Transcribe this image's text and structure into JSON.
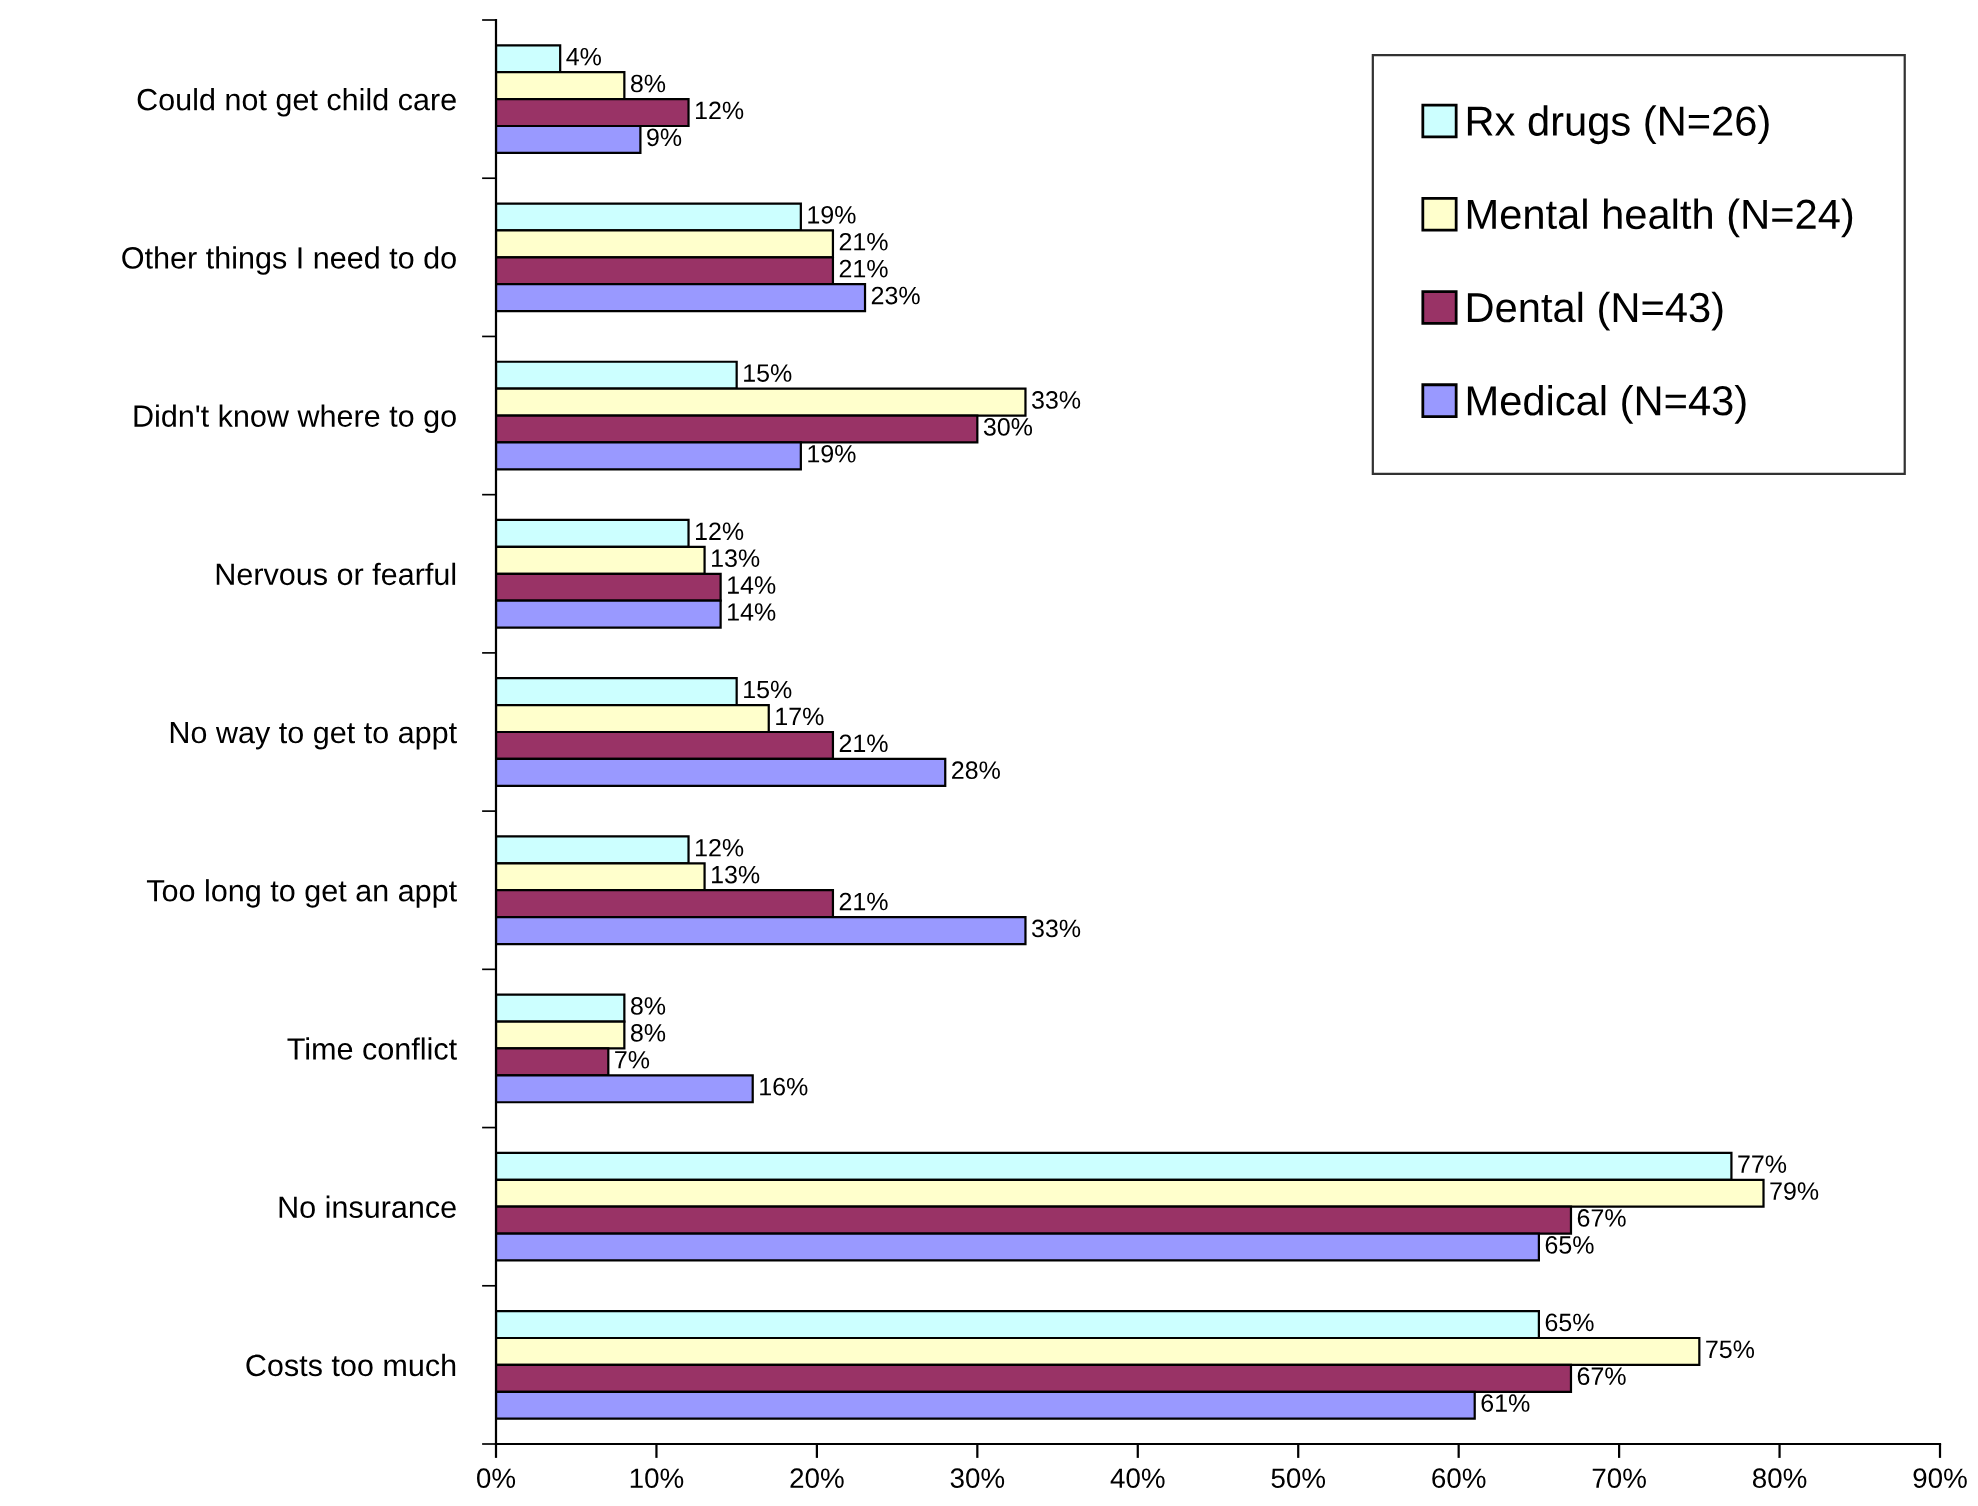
{
  "chart_data": {
    "type": "bar",
    "orientation": "horizontal",
    "categories": [
      "Could not get child care",
      "Other things I need to do",
      "Didn't know where to go",
      "Nervous or fearful",
      "No way to get to appt",
      "Too long to get an appt",
      "Time conflict",
      "No insurance",
      "Costs too much"
    ],
    "series": [
      {
        "name": "Rx drugs (N=26)",
        "color": "#ccffff",
        "values": [
          4,
          19,
          15,
          12,
          15,
          12,
          8,
          77,
          65
        ],
        "value_labels": [
          "4%",
          "19%",
          "15%",
          "12%",
          "15%",
          "12%",
          "8%",
          "77%",
          "65%"
        ]
      },
      {
        "name": "Mental health (N=24)",
        "color": "#ffffcc",
        "values": [
          8,
          21,
          33,
          13,
          17,
          13,
          8,
          79,
          75
        ],
        "value_labels": [
          "8%",
          "21%",
          "33%",
          "13%",
          "17%",
          "13%",
          "8%",
          "79%",
          "75%"
        ]
      },
      {
        "name": "Dental (N=43)",
        "color": "#993366",
        "values": [
          12,
          21,
          30,
          14,
          21,
          21,
          7,
          67,
          67
        ],
        "value_labels": [
          "12%",
          "21%",
          "30%",
          "14%",
          "21%",
          "21%",
          "7%",
          "67%",
          "67%"
        ]
      },
      {
        "name": "Medical (N=43)",
        "color": "#9999ff",
        "values": [
          9,
          23,
          19,
          14,
          28,
          33,
          16,
          65,
          61
        ],
        "value_labels": [
          "9%",
          "23%",
          "19%",
          "14%",
          "28%",
          "33%",
          "16%",
          "65%",
          "61%"
        ]
      }
    ],
    "xlim": [
      0,
      90
    ],
    "xticks": [
      {
        "value": 0,
        "label": "0%"
      },
      {
        "value": 10,
        "label": "10%"
      },
      {
        "value": 20,
        "label": "20%"
      },
      {
        "value": 30,
        "label": "30%"
      },
      {
        "value": 40,
        "label": "40%"
      },
      {
        "value": 50,
        "label": "50%"
      },
      {
        "value": 60,
        "label": "60%"
      },
      {
        "value": 70,
        "label": "70%"
      },
      {
        "value": 80,
        "label": "80%"
      },
      {
        "value": 90,
        "label": "90%"
      }
    ],
    "grid": false,
    "legend": "top right"
  }
}
